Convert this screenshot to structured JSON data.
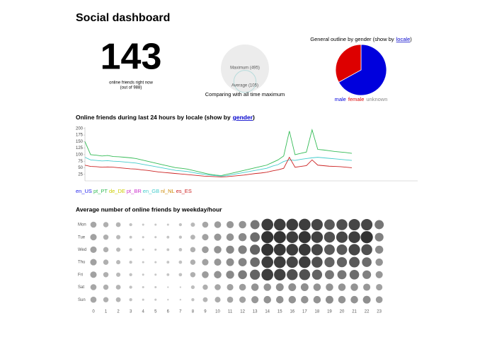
{
  "header": {
    "title": "Social dashboard"
  },
  "online": {
    "count": 143,
    "caption": "online friends right now",
    "total_label": "(out of 988)"
  },
  "chart_data": [
    {
      "type": "circles",
      "caption": "Comparing with all time maximum",
      "categories": [
        "Maximum",
        "Average"
      ],
      "values": [
        495,
        105
      ],
      "value_labels": [
        "Maximum (495)",
        "Average (105)"
      ],
      "color": "#ececec"
    },
    {
      "type": "pie",
      "title": "General outline by gender (show by",
      "title_link": "locale",
      "title_end": ")",
      "categories": [
        "male",
        "female",
        "unknown"
      ],
      "values": [
        67,
        33,
        0
      ],
      "colors": [
        "#0000dd",
        "#dd0000",
        "#888888"
      ]
    },
    {
      "type": "line",
      "title": "Online friends during last 24 hours by locale (show by",
      "title_link": "gender",
      "title_end": ")",
      "categories": [
        null,
        null,
        null,
        null,
        null,
        null,
        null,
        null,
        null,
        null,
        null,
        null,
        null,
        null,
        null,
        null,
        null,
        null,
        null,
        null,
        null,
        null,
        null,
        null,
        null,
        null,
        null,
        null,
        null,
        null,
        null,
        null,
        null,
        null,
        null,
        null,
        null,
        null,
        null,
        null,
        null,
        null,
        null,
        null,
        null,
        null,
        null,
        null
      ],
      "ylim": [
        0,
        205
      ],
      "yticks": [
        25,
        50,
        75,
        100,
        125,
        150,
        175,
        200
      ],
      "series": [
        {
          "name": "en_US",
          "color": "#2222ee",
          "values": [
            null,
            null,
            null,
            null,
            null,
            null,
            null,
            null,
            null,
            null,
            null,
            null,
            null,
            null,
            null,
            null,
            null,
            null,
            null,
            null,
            null,
            null,
            null,
            null,
            null,
            null,
            null,
            null,
            null,
            null,
            null,
            null,
            null,
            null,
            null,
            null,
            null,
            null,
            null,
            null,
            null,
            null,
            null,
            null,
            null,
            null,
            null,
            null
          ]
        },
        {
          "name": "pt_PT",
          "color": "#33bb55",
          "values": [
            150,
            100,
            98,
            95,
            97,
            93,
            92,
            90,
            88,
            85,
            80,
            75,
            70,
            65,
            60,
            55,
            50,
            48,
            45,
            40,
            35,
            30,
            25,
            22,
            20,
            25,
            30,
            35,
            40,
            45,
            50,
            55,
            60,
            70,
            80,
            95,
            190,
            100,
            105,
            110,
            195,
            120,
            118,
            115,
            112,
            110,
            108,
            105
          ]
        },
        {
          "name": "de_DE",
          "color": "#cccc00",
          "values": [
            null,
            null,
            null,
            null,
            null,
            null,
            null,
            null,
            null,
            null,
            null,
            null,
            null,
            null,
            null,
            null,
            null,
            null,
            null,
            null,
            null,
            null,
            null,
            null,
            null,
            null,
            null,
            null,
            null,
            null,
            null,
            null,
            null,
            null,
            null,
            null,
            null,
            null,
            null,
            null,
            null,
            null,
            null,
            null,
            null,
            null,
            null,
            null
          ]
        },
        {
          "name": "pt_BR",
          "color": "#cc33cc",
          "values": [
            null,
            null,
            null,
            null,
            null,
            null,
            null,
            null,
            null,
            null,
            null,
            null,
            null,
            null,
            null,
            null,
            null,
            null,
            null,
            null,
            null,
            null,
            null,
            null,
            null,
            null,
            null,
            null,
            null,
            null,
            null,
            null,
            null,
            null,
            null,
            null,
            null,
            null,
            null,
            null,
            null,
            null,
            null,
            null,
            null,
            null,
            null,
            null
          ]
        },
        {
          "name": "en_GB",
          "color": "#44cccc",
          "values": [
            90,
            80,
            78,
            76,
            77,
            75,
            74,
            72,
            70,
            68,
            64,
            60,
            56,
            52,
            48,
            44,
            40,
            38,
            36,
            32,
            28,
            25,
            22,
            20,
            18,
            20,
            24,
            28,
            32,
            36,
            40,
            44,
            48,
            56,
            62,
            74,
            80,
            78,
            82,
            85,
            88,
            90,
            88,
            86,
            84,
            82,
            80,
            78
          ]
        },
        {
          "name": "nl_NL",
          "color": "#cc8800",
          "values": [
            null,
            null,
            null,
            null,
            null,
            null,
            null,
            null,
            null,
            null,
            null,
            null,
            null,
            null,
            null,
            null,
            null,
            null,
            null,
            null,
            null,
            null,
            null,
            null,
            null,
            null,
            null,
            null,
            null,
            null,
            null,
            null,
            null,
            null,
            null,
            null,
            null,
            null,
            null,
            null,
            null,
            null,
            null,
            null,
            null,
            null,
            null,
            null
          ]
        },
        {
          "name": "es_ES",
          "color": "#cc2222",
          "values": [
            60,
            55,
            54,
            52,
            53,
            52,
            50,
            48,
            46,
            45,
            42,
            40,
            37,
            34,
            32,
            30,
            28,
            26,
            24,
            22,
            20,
            18,
            17,
            16,
            15,
            16,
            18,
            20,
            22,
            25,
            28,
            30,
            33,
            38,
            42,
            48,
            90,
            52,
            55,
            58,
            80,
            60,
            58,
            56,
            55,
            54,
            52,
            50
          ]
        }
      ]
    },
    {
      "type": "bubble-grid",
      "title": "Average number of online friends by weekday/hour",
      "x": [
        0,
        1,
        2,
        3,
        4,
        5,
        6,
        7,
        8,
        9,
        10,
        11,
        12,
        13,
        14,
        15,
        16,
        17,
        18,
        19,
        20,
        21,
        22,
        23
      ],
      "categories": [
        "Mon",
        "Tue",
        "Wed",
        "Thu",
        "Fri",
        "Sat",
        "Sun"
      ],
      "color_low": "#cccccc",
      "color_high": "#333333",
      "values": [
        [
          40,
          30,
          25,
          10,
          5,
          5,
          5,
          10,
          20,
          40,
          50,
          55,
          60,
          90,
          150,
          150,
          150,
          150,
          140,
          120,
          130,
          140,
          140,
          90
        ],
        [
          45,
          30,
          20,
          8,
          5,
          5,
          8,
          10,
          25,
          45,
          55,
          60,
          70,
          100,
          160,
          160,
          150,
          160,
          145,
          130,
          140,
          150,
          160,
          80
        ],
        [
          45,
          30,
          20,
          10,
          5,
          5,
          8,
          12,
          30,
          50,
          60,
          70,
          80,
          110,
          160,
          155,
          150,
          155,
          140,
          120,
          120,
          140,
          130,
          70
        ],
        [
          45,
          30,
          20,
          10,
          5,
          5,
          8,
          12,
          30,
          45,
          55,
          65,
          75,
          100,
          150,
          150,
          140,
          150,
          130,
          110,
          110,
          120,
          100,
          60
        ],
        [
          45,
          30,
          20,
          10,
          5,
          5,
          8,
          12,
          30,
          50,
          60,
          70,
          85,
          110,
          150,
          145,
          130,
          130,
          110,
          90,
          90,
          100,
          80,
          55
        ],
        [
          40,
          30,
          25,
          10,
          5,
          5,
          3,
          3,
          15,
          30,
          40,
          45,
          50,
          60,
          60,
          65,
          65,
          65,
          60,
          60,
          60,
          60,
          55,
          45
        ],
        [
          40,
          30,
          25,
          10,
          5,
          5,
          3,
          3,
          10,
          25,
          35,
          40,
          45,
          55,
          60,
          60,
          60,
          60,
          60,
          65,
          60,
          60,
          65,
          50
        ]
      ]
    }
  ]
}
